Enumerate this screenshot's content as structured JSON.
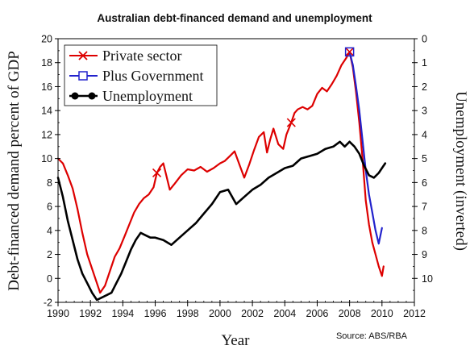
{
  "chart_data": {
    "type": "line",
    "title": "Australian debt-financed demand and unemployment",
    "xlabel": "Year",
    "ylabel": "Debt-financed demand percent of GDP",
    "y2label": "Unemployment (inverted)",
    "source": "Source:  ABS/RBA",
    "xlim": [
      1990,
      2012
    ],
    "ylim": [
      -2,
      20
    ],
    "y2lim": [
      0,
      11
    ],
    "y2_inverted": true,
    "grid": false,
    "legend_position": "top-left",
    "xticks": [
      "1990",
      "1992",
      "1994",
      "1996",
      "1998",
      "2000",
      "2002",
      "2004",
      "2006",
      "2008",
      "2010",
      "2012"
    ],
    "yticks": [
      "-2",
      "0",
      "2",
      "4",
      "6",
      "8",
      "10",
      "12",
      "14",
      "16",
      "18",
      "20"
    ],
    "y2ticks": [
      "0",
      "1",
      "2",
      "3",
      "4",
      "5",
      "6",
      "7",
      "8",
      "9",
      "10"
    ],
    "series": [
      {
        "name": "Private sector",
        "axis": "left",
        "color": "#dd0000",
        "marker": "x",
        "marker_x": [
          1996.1,
          2004.4,
          2008.0
        ],
        "x": [
          1990.0,
          1990.3,
          1990.6,
          1990.9,
          1991.2,
          1991.5,
          1991.8,
          1992.1,
          1992.4,
          1992.6,
          1992.9,
          1993.2,
          1993.5,
          1993.8,
          1994.1,
          1994.4,
          1994.7,
          1995.0,
          1995.3,
          1995.6,
          1995.9,
          1996.1,
          1996.3,
          1996.5,
          1996.7,
          1996.9,
          1997.2,
          1997.6,
          1998.0,
          1998.4,
          1998.8,
          1999.2,
          1999.6,
          2000.0,
          2000.3,
          2000.6,
          2000.9,
          2001.2,
          2001.5,
          2001.8,
          2002.1,
          2002.4,
          2002.7,
          2002.9,
          2003.1,
          2003.3,
          2003.6,
          2003.9,
          2004.1,
          2004.4,
          2004.6,
          2004.8,
          2005.1,
          2005.4,
          2005.7,
          2006.0,
          2006.3,
          2006.6,
          2006.9,
          2007.2,
          2007.5,
          2007.8,
          2008.0,
          2008.2,
          2008.4,
          2008.6,
          2008.8,
          2009.0,
          2009.2,
          2009.4,
          2009.6,
          2009.8,
          2010.0,
          2010.1
        ],
        "values": [
          10.0,
          9.6,
          8.6,
          7.5,
          5.8,
          3.8,
          2.0,
          0.8,
          -0.4,
          -1.2,
          -0.6,
          0.6,
          1.8,
          2.5,
          3.5,
          4.5,
          5.5,
          6.2,
          6.7,
          7.0,
          7.6,
          8.8,
          9.3,
          9.6,
          8.5,
          7.4,
          7.9,
          8.6,
          9.1,
          9.0,
          9.3,
          8.9,
          9.2,
          9.6,
          9.8,
          10.2,
          10.6,
          9.5,
          8.4,
          9.5,
          10.7,
          11.8,
          12.2,
          10.5,
          11.6,
          12.5,
          11.2,
          10.8,
          12.0,
          13.0,
          13.8,
          14.1,
          14.3,
          14.1,
          14.4,
          15.4,
          15.9,
          15.6,
          16.2,
          16.9,
          17.8,
          18.4,
          18.9,
          17.6,
          15.5,
          13.0,
          10.0,
          6.5,
          4.5,
          3.0,
          2.0,
          1.0,
          0.2,
          1.0
        ]
      },
      {
        "name": "Plus Government",
        "axis": "left",
        "color": "#2222cc",
        "marker": "square",
        "marker_x": [
          2008.0
        ],
        "x": [
          2008.0,
          2008.2,
          2008.4,
          2008.6,
          2008.8,
          2009.0,
          2009.2,
          2009.4,
          2009.6,
          2009.8,
          2010.0
        ],
        "values": [
          18.9,
          17.8,
          16.0,
          14.0,
          11.5,
          9.0,
          7.0,
          5.5,
          4.0,
          2.9,
          4.2
        ]
      },
      {
        "name": "Unemployment",
        "axis": "right",
        "color": "#000000",
        "marker": "circle",
        "marker_x": [],
        "x": [
          1990.0,
          1990.3,
          1990.6,
          1990.9,
          1991.2,
          1991.5,
          1991.8,
          1992.1,
          1992.4,
          1992.7,
          1993.0,
          1993.3,
          1993.6,
          1993.9,
          1994.2,
          1994.5,
          1994.8,
          1995.1,
          1995.4,
          1995.7,
          1996.0,
          1996.5,
          1997.0,
          1997.5,
          1998.0,
          1998.5,
          1999.0,
          1999.5,
          2000.0,
          2000.5,
          2001.0,
          2001.5,
          2002.0,
          2002.5,
          2003.0,
          2003.5,
          2004.0,
          2004.5,
          2005.0,
          2005.5,
          2006.0,
          2006.5,
          2007.0,
          2007.4,
          2007.7,
          2008.0,
          2008.3,
          2008.6,
          2008.9,
          2009.2,
          2009.5,
          2009.8,
          2010.0,
          2010.2
        ],
        "values": [
          5.8,
          6.6,
          7.6,
          8.4,
          9.2,
          9.8,
          10.2,
          10.6,
          10.9,
          10.8,
          10.7,
          10.6,
          10.2,
          9.8,
          9.3,
          8.8,
          8.4,
          8.1,
          8.2,
          8.3,
          8.3,
          8.4,
          8.6,
          8.3,
          8.0,
          7.7,
          7.3,
          6.9,
          6.4,
          6.3,
          6.9,
          6.6,
          6.3,
          6.1,
          5.8,
          5.6,
          5.4,
          5.3,
          5.0,
          4.9,
          4.8,
          4.6,
          4.5,
          4.3,
          4.5,
          4.3,
          4.5,
          4.8,
          5.3,
          5.7,
          5.8,
          5.6,
          5.4,
          5.2
        ]
      }
    ]
  }
}
